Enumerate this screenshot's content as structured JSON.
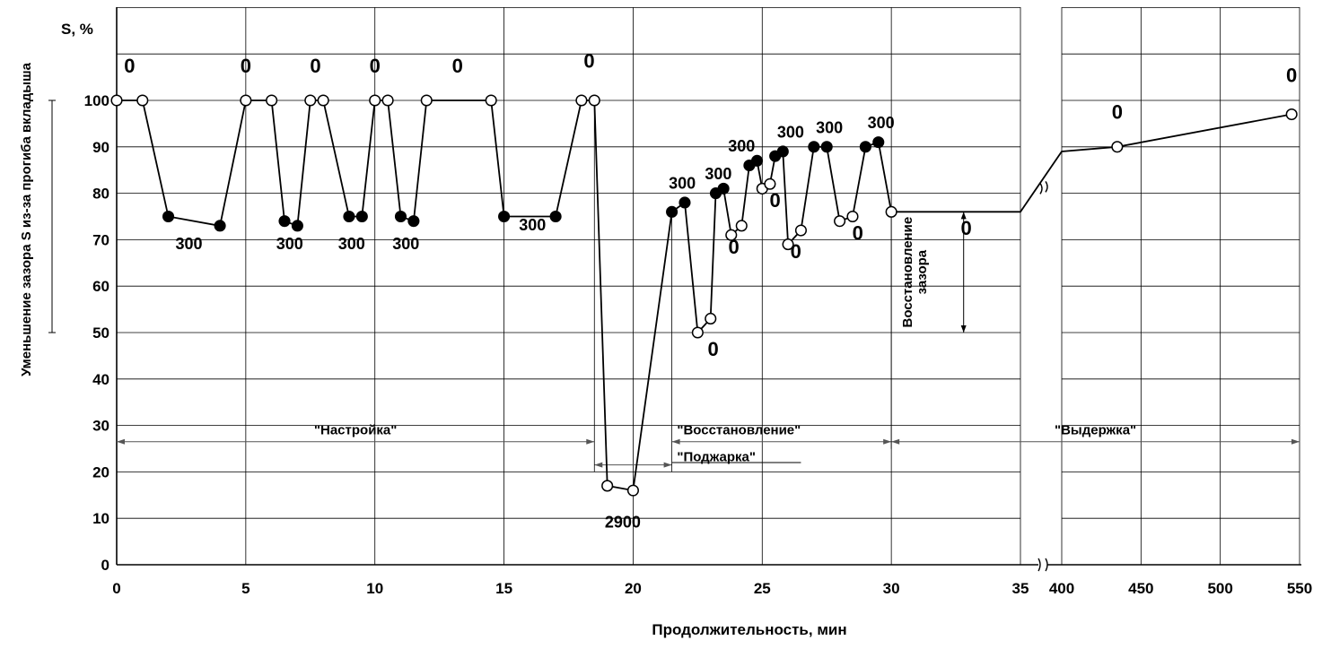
{
  "chart_data": {
    "type": "line",
    "ylabel": "S, %",
    "ylabel_side": "Уменьшение зазора S из-за прогиба вкладыша",
    "xlabel": "Продолжительность, мин",
    "ylim": [
      0,
      120
    ],
    "xlim_main": [
      0,
      35
    ],
    "xlim_break": [
      400,
      550
    ],
    "x_break": "broken axis between 35 and 400",
    "grid": "on",
    "x_ticks": [
      "0",
      "5",
      "10",
      "15",
      "20",
      "25",
      "30",
      "35",
      "400",
      "450",
      "500",
      "550"
    ],
    "y_ticks": [
      "0",
      "10",
      "20",
      "30",
      "40",
      "50",
      "60",
      "70",
      "80",
      "90",
      "100"
    ],
    "series": [
      {
        "points": [
          {
            "x": 0,
            "y": 100,
            "filled": false
          },
          {
            "x": 1,
            "y": 100,
            "filled": false
          },
          {
            "x": 2,
            "y": 75,
            "filled": true
          },
          {
            "x": 4,
            "y": 73,
            "filled": true
          },
          {
            "x": 5,
            "y": 100,
            "filled": false
          },
          {
            "x": 6,
            "y": 100,
            "filled": false
          },
          {
            "x": 6.5,
            "y": 74,
            "filled": true
          },
          {
            "x": 7,
            "y": 73,
            "filled": true
          },
          {
            "x": 7.5,
            "y": 100,
            "filled": false
          },
          {
            "x": 8,
            "y": 100,
            "filled": false
          },
          {
            "x": 9,
            "y": 75,
            "filled": true
          },
          {
            "x": 9.5,
            "y": 75,
            "filled": true
          },
          {
            "x": 10,
            "y": 100,
            "filled": false
          },
          {
            "x": 10.5,
            "y": 100,
            "filled": false
          },
          {
            "x": 11,
            "y": 75,
            "filled": true
          },
          {
            "x": 11.5,
            "y": 74,
            "filled": true
          },
          {
            "x": 12,
            "y": 100,
            "filled": false
          },
          {
            "x": 14.5,
            "y": 100,
            "filled": false
          },
          {
            "x": 15,
            "y": 75,
            "filled": true
          },
          {
            "x": 17,
            "y": 75,
            "filled": true
          },
          {
            "x": 18,
            "y": 100,
            "filled": false
          },
          {
            "x": 18.5,
            "y": 100,
            "filled": false
          },
          {
            "x": 19,
            "y": 17,
            "filled": false
          },
          {
            "x": 20,
            "y": 16,
            "filled": false
          },
          {
            "x": 21.5,
            "y": 76,
            "filled": true
          },
          {
            "x": 22,
            "y": 78,
            "filled": true
          },
          {
            "x": 22.5,
            "y": 50,
            "filled": false
          },
          {
            "x": 23,
            "y": 53,
            "filled": false
          },
          {
            "x": 23.2,
            "y": 80,
            "filled": true
          },
          {
            "x": 23.5,
            "y": 81,
            "filled": true
          },
          {
            "x": 23.8,
            "y": 71,
            "filled": false
          },
          {
            "x": 24.2,
            "y": 73,
            "filled": false
          },
          {
            "x": 24.5,
            "y": 86,
            "filled": true
          },
          {
            "x": 24.8,
            "y": 87,
            "filled": true
          },
          {
            "x": 25,
            "y": 81,
            "filled": false
          },
          {
            "x": 25.3,
            "y": 82,
            "filled": false
          },
          {
            "x": 25.5,
            "y": 88,
            "filled": true
          },
          {
            "x": 25.8,
            "y": 89,
            "filled": true
          },
          {
            "x": 26,
            "y": 69,
            "filled": false
          },
          {
            "x": 26.5,
            "y": 72,
            "filled": false
          },
          {
            "x": 27,
            "y": 90,
            "filled": true
          },
          {
            "x": 27.5,
            "y": 90,
            "filled": true
          },
          {
            "x": 28,
            "y": 74,
            "filled": false
          },
          {
            "x": 28.5,
            "y": 75,
            "filled": false
          },
          {
            "x": 29,
            "y": 90,
            "filled": true
          },
          {
            "x": 29.5,
            "y": 91,
            "filled": true
          },
          {
            "x": 30,
            "y": 76,
            "filled": false
          }
        ],
        "continuation": [
          {
            "x": 35,
            "y": 76,
            "marker": false
          },
          {
            "x": 400,
            "y": 89,
            "marker": false
          },
          {
            "x": 435,
            "y": 90,
            "filled": false
          },
          {
            "x": 545,
            "y": 97,
            "filled": false
          }
        ]
      }
    ],
    "annotations": [
      {
        "text": "0",
        "x": 0.5,
        "y": 106
      },
      {
        "text": "0",
        "x": 5,
        "y": 106
      },
      {
        "text": "0",
        "x": 7.7,
        "y": 106
      },
      {
        "text": "0",
        "x": 10,
        "y": 106
      },
      {
        "text": "0",
        "x": 13.2,
        "y": 106
      },
      {
        "text": "0",
        "x": 18.3,
        "y": 107
      },
      {
        "text": "300",
        "x": 2.8,
        "y": 68
      },
      {
        "text": "300",
        "x": 6.7,
        "y": 68
      },
      {
        "text": "300",
        "x": 9.1,
        "y": 68
      },
      {
        "text": "300",
        "x": 11.2,
        "y": 68
      },
      {
        "text": "300",
        "x": 16.1,
        "y": 72
      },
      {
        "text": "2900",
        "x": 19.6,
        "y": 8
      },
      {
        "text": "300",
        "x": 21.9,
        "y": 81
      },
      {
        "text": "300",
        "x": 23.3,
        "y": 83
      },
      {
        "text": "300",
        "x": 24.2,
        "y": 89
      },
      {
        "text": "300",
        "x": 26.1,
        "y": 92
      },
      {
        "text": "300",
        "x": 27.6,
        "y": 93
      },
      {
        "text": "300",
        "x": 29.6,
        "y": 94
      },
      {
        "text": "0",
        "x": 23.1,
        "y": 45
      },
      {
        "text": "0",
        "x": 23.9,
        "y": 67
      },
      {
        "text": "0",
        "x": 25.5,
        "y": 77
      },
      {
        "text": "0",
        "x": 26.3,
        "y": 66
      },
      {
        "text": "0",
        "x": 28.7,
        "y": 70
      },
      {
        "text": "0",
        "x": 32.9,
        "y": 71
      },
      {
        "text": "0",
        "x": 435,
        "y": 96
      },
      {
        "text": "0",
        "x": 545,
        "y": 104
      }
    ],
    "phases": [
      {
        "label": "\"Настройка\"",
        "from": 0,
        "to": 18.5,
        "y": 26.5
      },
      {
        "label": "\"Восстановление\"",
        "from": 21.5,
        "to": 30,
        "y": 26.5
      },
      {
        "label": "\"Выдержка\"",
        "from": 30,
        "to": 550,
        "y": 26.5
      },
      {
        "label": "\"Поджарка\"",
        "from": 18.5,
        "to": 21.5,
        "y": 21.5
      }
    ],
    "recovery_label": "Восстановление зазора"
  }
}
